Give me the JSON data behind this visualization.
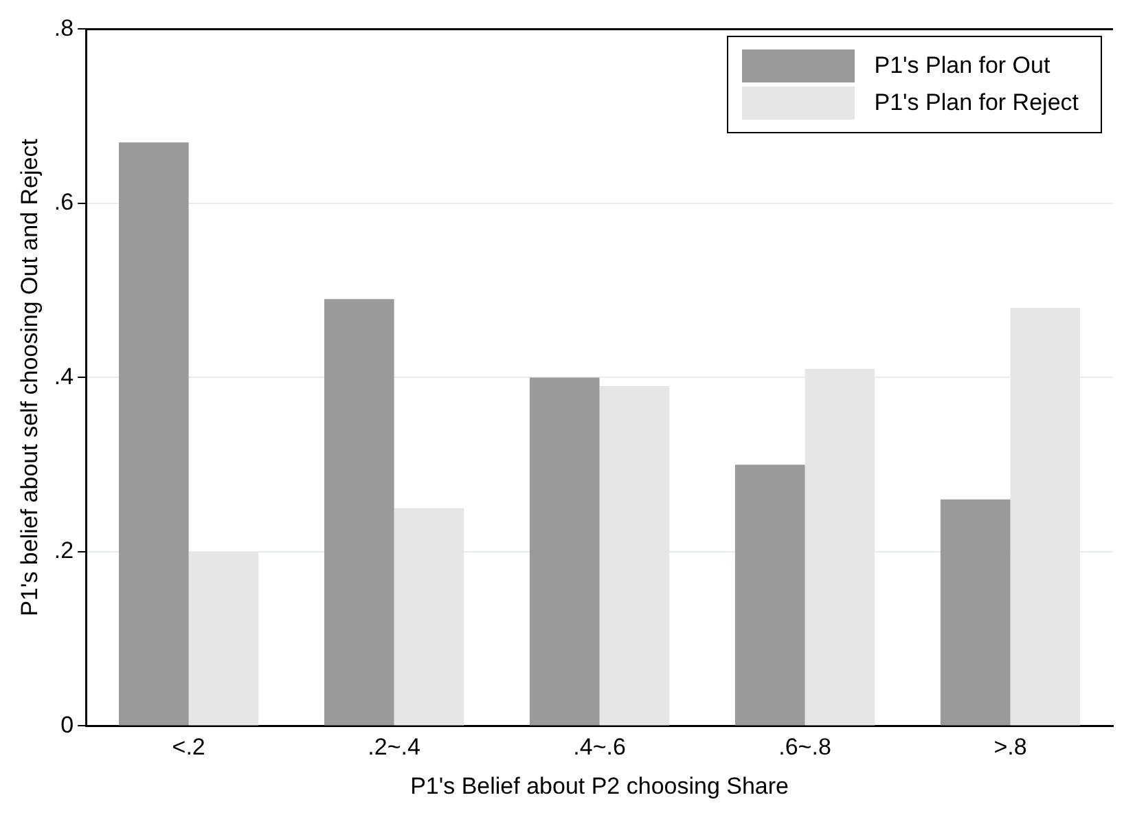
{
  "chart_data": {
    "type": "bar",
    "xlabel": "P1's Belief about P2 choosing Share",
    "ylabel": "P1's belief about self choosing Out and Reject",
    "categories": [
      "<.2",
      ".2~.4",
      ".4~.6",
      ".6~.8",
      ">.8"
    ],
    "series": [
      {
        "name": "P1's Plan for Out",
        "color": "#9a9a9a",
        "values": [
          0.67,
          0.49,
          0.4,
          0.3,
          0.26
        ]
      },
      {
        "name": "P1's Plan for Reject",
        "color": "#e6e6e6",
        "values": [
          0.2,
          0.25,
          0.39,
          0.41,
          0.48
        ]
      }
    ],
    "ylim": [
      0,
      0.8
    ],
    "yticks": [
      {
        "value": 0,
        "label": "0"
      },
      {
        "value": 0.2,
        "label": ".2"
      },
      {
        "value": 0.4,
        "label": ".4"
      },
      {
        "value": 0.6,
        "label": ".6"
      },
      {
        "value": 0.8,
        "label": ".8"
      }
    ],
    "grid": "y",
    "legend": "top right"
  }
}
